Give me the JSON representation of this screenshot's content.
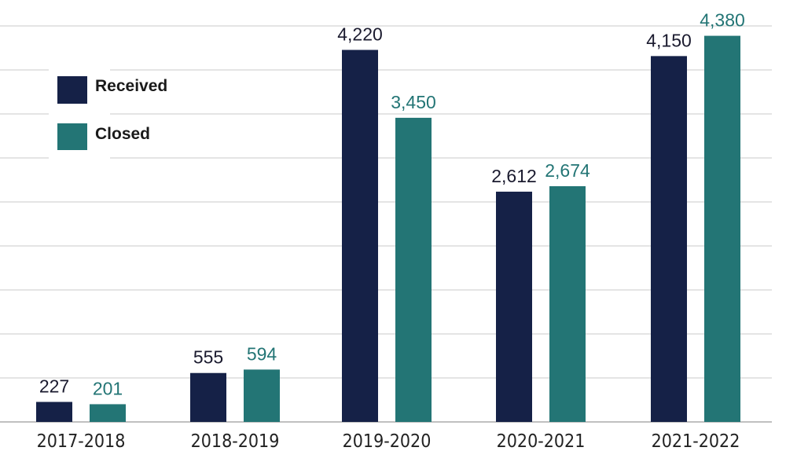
{
  "chart_data": {
    "type": "bar",
    "title": "",
    "xlabel": "",
    "ylabel": "",
    "ylim": [
      0,
      4600
    ],
    "grid": true,
    "legend_position": "top-left",
    "categories": [
      "2017-2018",
      "2018-2019",
      "2019-2020",
      "2020-2021",
      "2021-2022"
    ],
    "series": [
      {
        "name": "Received",
        "color": "#152147",
        "label_color": "#1a1a2e",
        "values": [
          227,
          555,
          4220,
          2612,
          4150
        ],
        "labels": [
          "227",
          "555",
          "4,220",
          "2,612",
          "4,150"
        ]
      },
      {
        "name": "Closed",
        "color": "#237575",
        "label_color": "#237575",
        "values": [
          201,
          594,
          3450,
          2674,
          4380
        ],
        "labels": [
          "201",
          "594",
          "3,450",
          "2,674",
          "4,380"
        ]
      }
    ]
  }
}
